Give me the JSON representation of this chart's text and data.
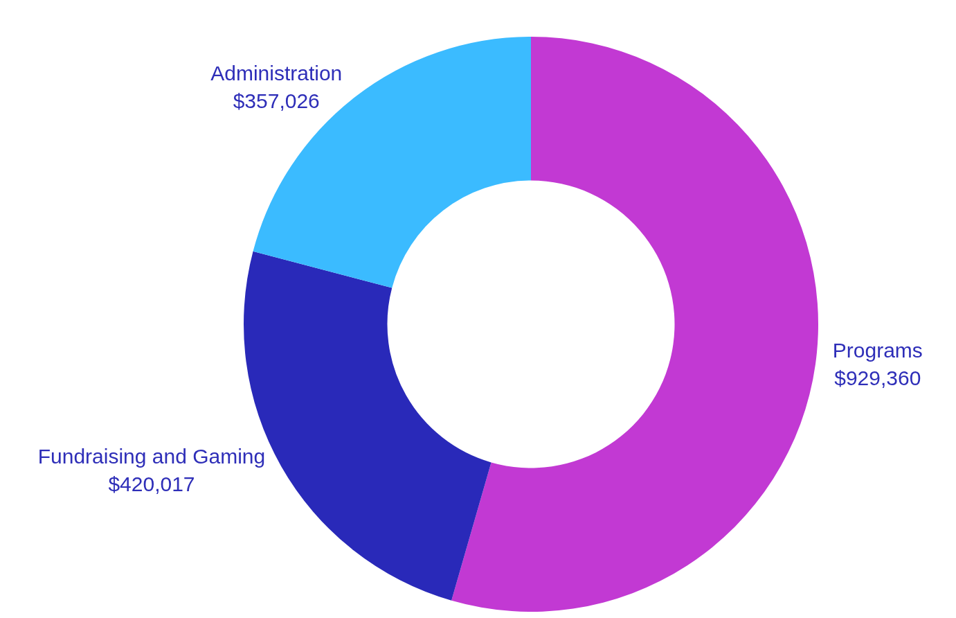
{
  "chart_data": {
    "type": "donut",
    "categories": [
      "Programs",
      "Fundraising and Gaming",
      "Administration"
    ],
    "values": [
      929360,
      420017,
      357026
    ],
    "colors": [
      "#c239d3",
      "#2929b9",
      "#3bbbff"
    ],
    "value_labels": [
      "$929,360",
      "$420,017",
      "$357,026"
    ]
  }
}
